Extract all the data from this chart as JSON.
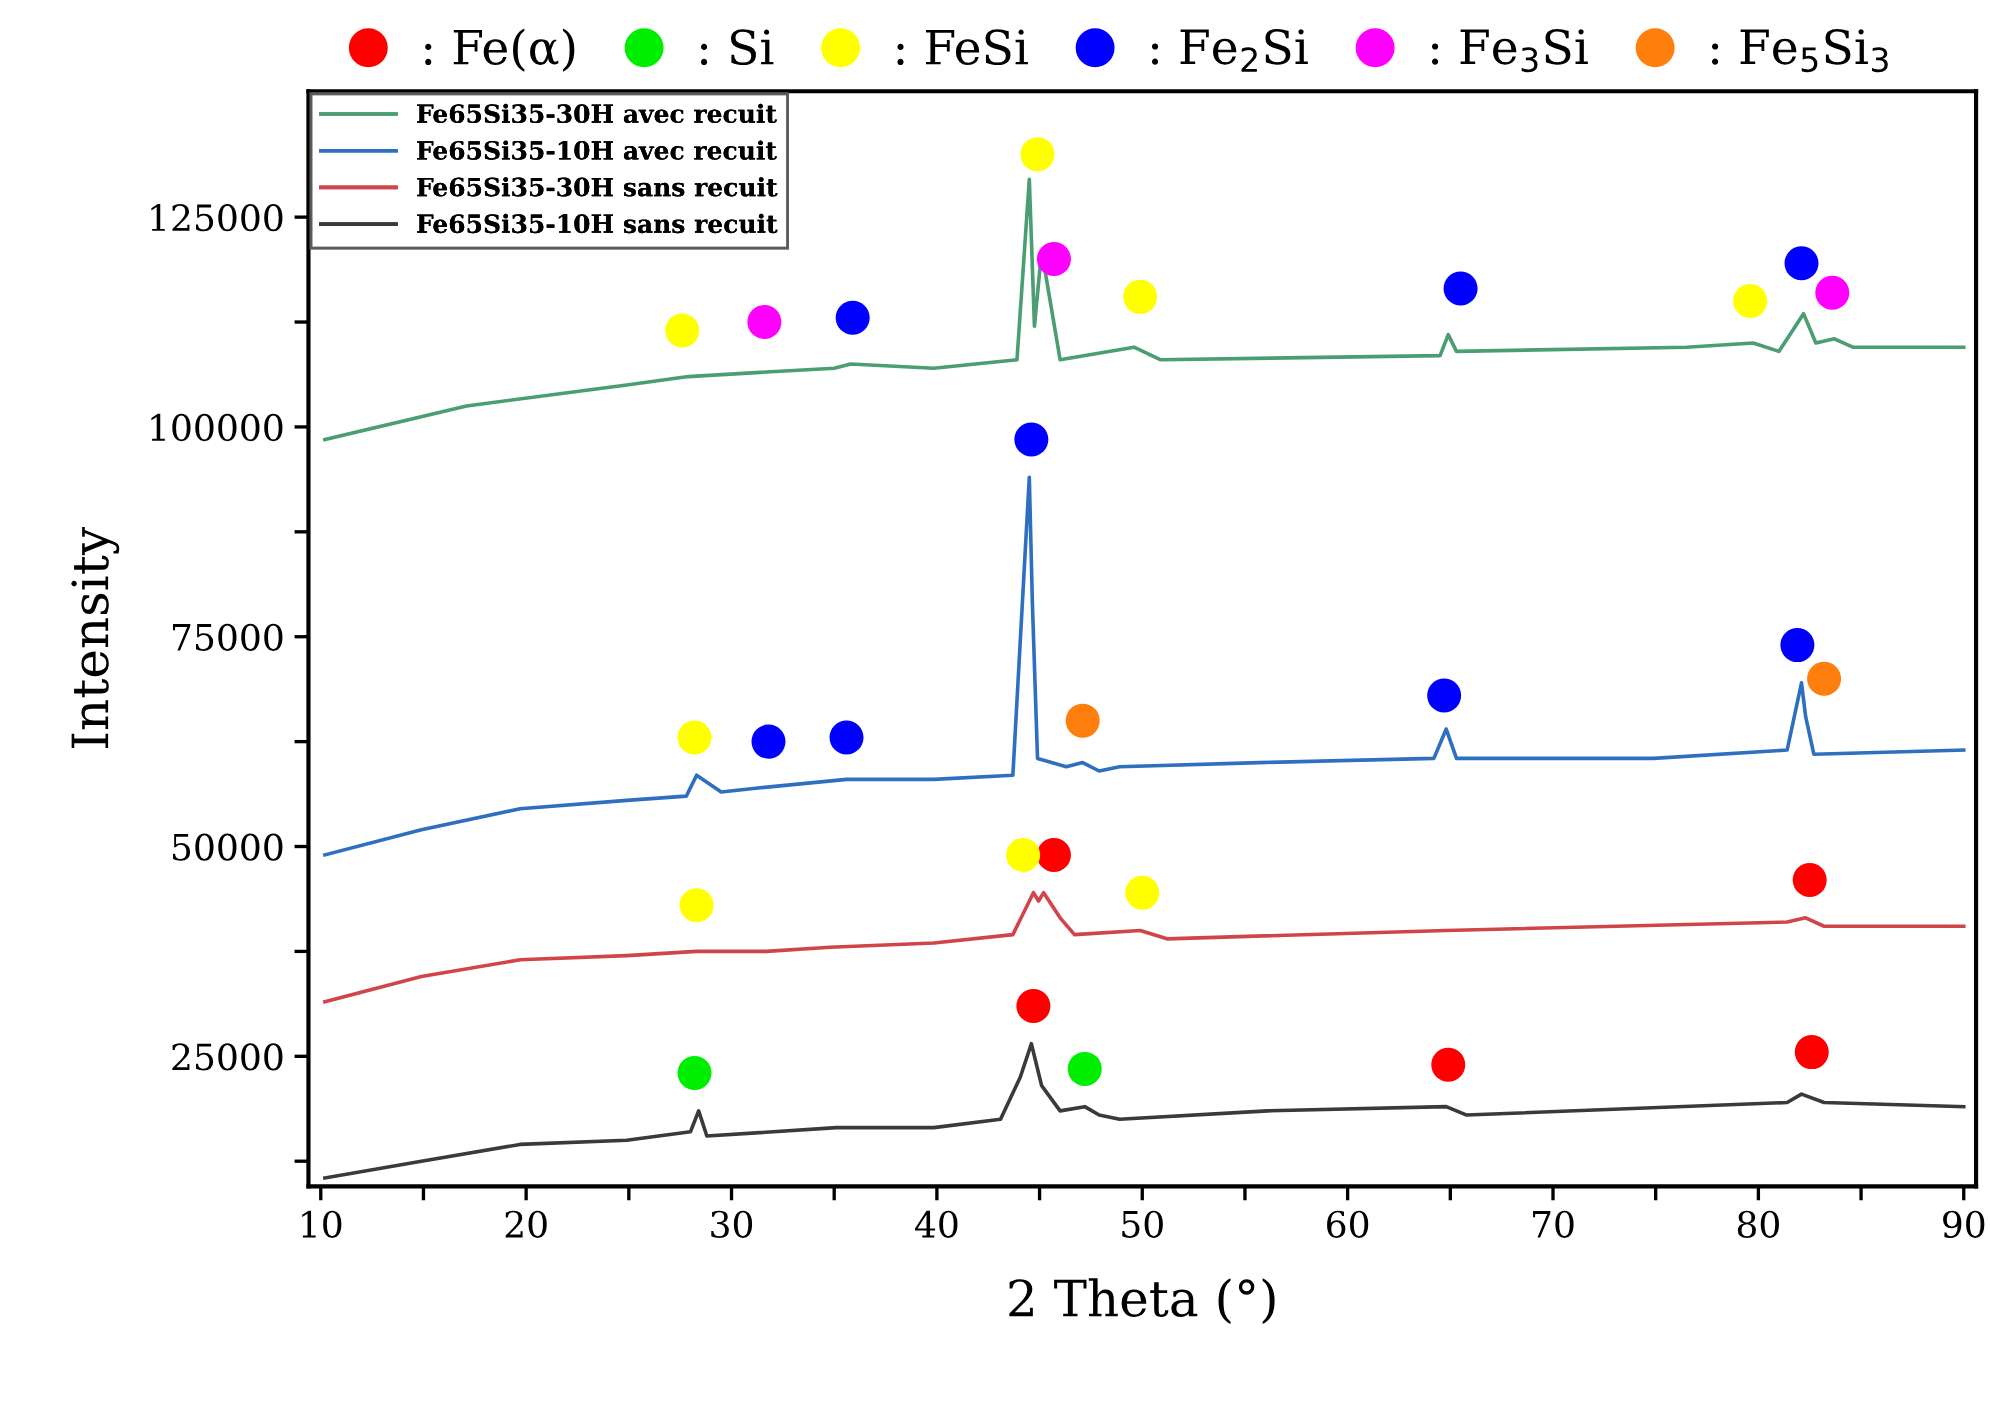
{
  "chart_data": {
    "type": "line",
    "xlabel": "2 Theta (°)",
    "ylabel": "Intensity",
    "xlim": [
      9.4,
      90.6
    ],
    "ylim": [
      9500,
      140000
    ],
    "xticks": [
      10,
      {
        "value": 15,
        "label": null
      },
      20,
      {
        "value": 25,
        "label": null
      },
      30,
      {
        "value": 35,
        "label": null
      },
      40,
      {
        "value": 45,
        "label": null
      },
      50,
      {
        "value": 55,
        "label": null
      },
      60,
      {
        "value": 65,
        "label": null
      },
      70,
      {
        "value": 75,
        "label": null
      },
      80,
      {
        "value": 85,
        "label": null
      },
      90
    ],
    "yticks": [
      {
        "value": 12500,
        "label": null
      },
      25000,
      {
        "value": 37500,
        "label": null
      },
      50000,
      {
        "value": 62500,
        "label": null
      },
      75000,
      {
        "value": 87500,
        "label": null
      },
      100000,
      {
        "value": 112500,
        "label": null
      },
      125000
    ],
    "grid": false,
    "legend": "top left",
    "series": [
      {
        "name": "Fe65Si35-30H avec recuit",
        "color": "#4a9e72",
        "x": [
          10.2,
          17.1,
          24.9,
          27.9,
          31.4,
          35.0,
          35.8,
          39.85,
          43.9,
          44.5,
          44.75,
          45.1,
          46.0,
          49.6,
          50.9,
          64.5,
          64.9,
          65.3,
          76.5,
          79.75,
          81.0,
          82.2,
          82.8,
          83.7,
          84.6,
          90
        ],
        "values": [
          98500,
          102500,
          105000,
          106000,
          106500,
          107000,
          107500,
          107000,
          108000,
          129500,
          112000,
          121000,
          108000,
          109500,
          108000,
          108500,
          111000,
          109000,
          109500,
          110000,
          109000,
          113500,
          110000,
          110500,
          109500,
          109500
        ]
      },
      {
        "name": "Fe65Si35-10H avec recuit",
        "color": "#2f6fbf",
        "x": [
          10.2,
          14.9,
          19.7,
          24.9,
          27.8,
          28.3,
          29.5,
          31.4,
          35.6,
          39.85,
          43.7,
          44.5,
          44.65,
          44.9,
          46.3,
          47.1,
          47.9,
          48.9,
          55.7,
          64.2,
          64.8,
          65.3,
          74.9,
          81.4,
          82.1,
          82.3,
          82.7,
          90
        ],
        "values": [
          49000,
          52000,
          54500,
          55500,
          56000,
          58500,
          56500,
          57000,
          58000,
          58000,
          58500,
          94000,
          79000,
          60500,
          59500,
          60000,
          59000,
          59500,
          60000,
          60500,
          64000,
          60500,
          60500,
          61500,
          69500,
          65500,
          61000,
          61500
        ]
      },
      {
        "name": "Fe65Si35-30H sans recuit",
        "color": "#d0454a",
        "x": [
          10.2,
          14.9,
          19.7,
          24.9,
          28.3,
          31.7,
          34.8,
          39.85,
          43.7,
          44.7,
          44.95,
          45.2,
          46.0,
          46.7,
          49.9,
          51.2,
          64.8,
          81.4,
          82.3,
          83.2,
          90
        ],
        "values": [
          31500,
          34500,
          36500,
          37000,
          37500,
          37500,
          38000,
          38500,
          39500,
          44500,
          43500,
          44500,
          41500,
          39500,
          40000,
          39000,
          40000,
          41000,
          41500,
          40500,
          40500
        ]
      },
      {
        "name": "Fe65Si35-10H sans recuit",
        "color": "#3a3a3a",
        "x": [
          10.2,
          14.9,
          19.7,
          24.9,
          28.0,
          28.4,
          28.8,
          35.1,
          39.85,
          43.1,
          44.06,
          44.6,
          45.1,
          46.0,
          47.2,
          47.9,
          48.9,
          56.1,
          64.8,
          65.8,
          81.4,
          82.1,
          83.2,
          90
        ],
        "values": [
          10500,
          12500,
          14500,
          15000,
          16000,
          18500,
          15500,
          16500,
          16500,
          17500,
          22500,
          26500,
          21500,
          18500,
          19000,
          18000,
          17500,
          18500,
          19000,
          18000,
          19500,
          20500,
          19500,
          19000
        ]
      },
      {
        "name": ": Fe(α)",
        "type": "scatter",
        "marker": "circle",
        "color": "#ff0000",
        "x": [
          45.7,
          82.5,
          44.7,
          64.9,
          82.6
        ],
        "values": [
          49000,
          46000,
          31000,
          24000,
          25500
        ]
      },
      {
        "name": ": Si",
        "type": "scatter",
        "marker": "circle",
        "color": "#00ee00",
        "x": [
          28.2,
          47.2
        ],
        "values": [
          23000,
          23500
        ]
      },
      {
        "name": ": FeSi",
        "type": "scatter",
        "marker": "circle",
        "color": "#ffff00",
        "x": [
          27.6,
          44.9,
          49.9,
          79.6,
          28.2,
          28.3,
          44.2,
          50.0
        ],
        "values": [
          111500,
          132500,
          115500,
          115000,
          63000,
          43000,
          49000,
          44500
        ]
      },
      {
        "name": ": Fe$_{2}$Si",
        "type": "scatter",
        "marker": "circle",
        "color": "#0000ff",
        "x": [
          35.9,
          65.5,
          82.1,
          44.6,
          31.8,
          35.6,
          64.7,
          81.9
        ],
        "values": [
          113000,
          116500,
          119500,
          98500,
          62500,
          63000,
          68000,
          74000
        ]
      },
      {
        "name": ": Fe$_{3}$Si",
        "type": "scatter",
        "marker": "circle",
        "color": "#ff00ff",
        "x": [
          31.6,
          45.7,
          83.6
        ],
        "values": [
          112500,
          120000,
          116000
        ]
      },
      {
        "name": ": Fe$_{5}$Si$_{3}$",
        "type": "scatter",
        "marker": "circle",
        "color": "#ff7f0e",
        "x": [
          47.1,
          83.2
        ],
        "values": [
          65000,
          70000
        ]
      }
    ]
  }
}
